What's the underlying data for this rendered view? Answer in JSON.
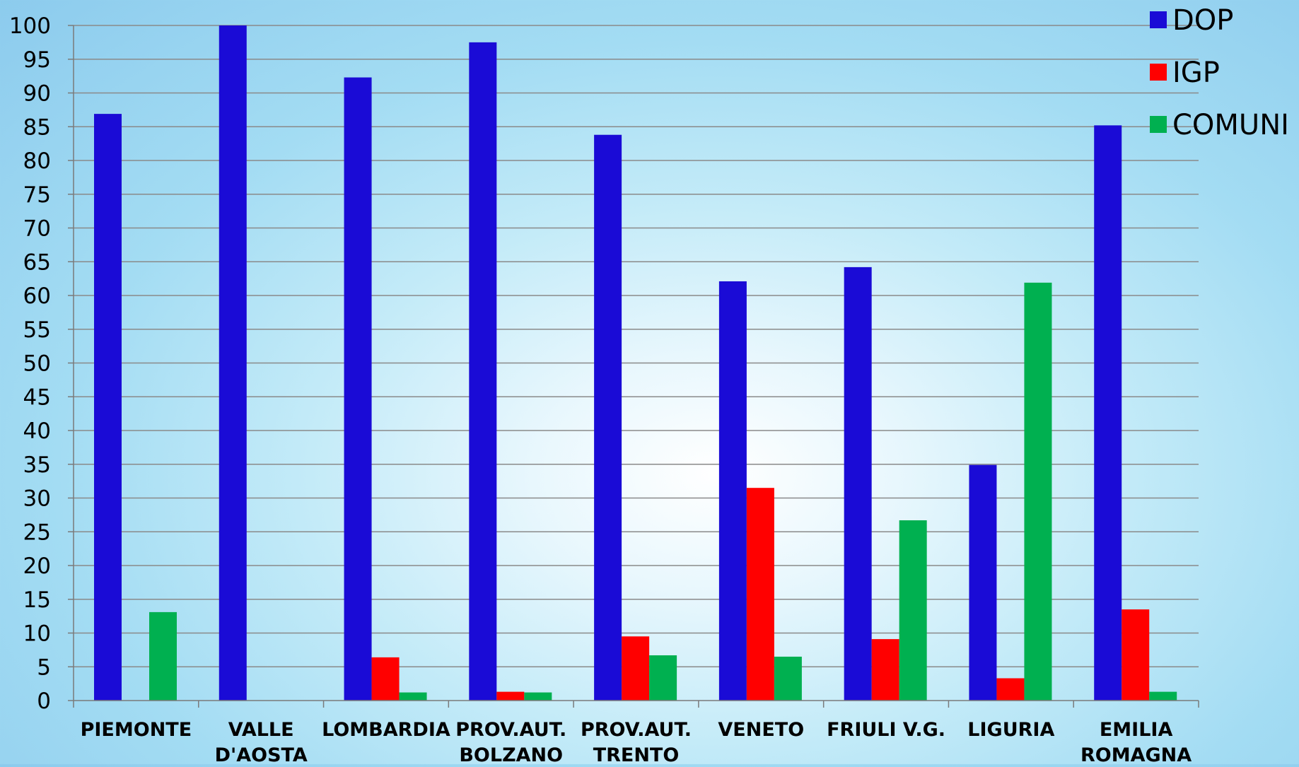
{
  "chart_data": {
    "type": "bar",
    "categories": [
      [
        "PIEMONTE"
      ],
      [
        "VALLE",
        "D'AOSTA"
      ],
      [
        "LOMBARDIA"
      ],
      [
        "PROV.AUT.",
        "BOLZANO"
      ],
      [
        "PROV.AUT.",
        "TRENTO"
      ],
      [
        "VENETO"
      ],
      [
        "FRIULI V.G."
      ],
      [
        "LIGURIA"
      ],
      [
        "EMILIA",
        "ROMAGNA"
      ]
    ],
    "series": [
      {
        "name": "DOP",
        "color": "#1a0bd6",
        "values": [
          86.9,
          100,
          92.3,
          97.5,
          83.8,
          62.1,
          64.2,
          34.9,
          85.2
        ]
      },
      {
        "name": "IGP",
        "color": "#ff0000",
        "values": [
          0,
          0,
          6.4,
          1.3,
          9.5,
          31.5,
          9.1,
          3.3,
          13.5
        ]
      },
      {
        "name": "COMUNI",
        "color": "#00b050",
        "values": [
          13.1,
          0,
          1.2,
          1.2,
          6.7,
          6.5,
          26.7,
          61.9,
          1.3
        ]
      }
    ],
    "ylim": [
      0,
      100
    ],
    "yticks": [
      "0",
      "5",
      "10",
      "15",
      "20",
      "25",
      "30",
      "35",
      "40",
      "45",
      "50",
      "55",
      "60",
      "65",
      "70",
      "75",
      "80",
      "85",
      "90",
      "95",
      "100"
    ],
    "grid": true,
    "legend": "top-right"
  }
}
